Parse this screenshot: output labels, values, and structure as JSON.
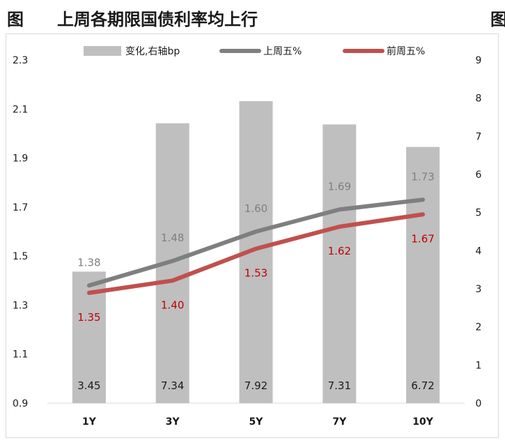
{
  "title": {
    "label": "图",
    "text": "上周各期限国债利率均上行",
    "cut_label": "图"
  },
  "colors": {
    "bar": "#bfbfbf",
    "line_prev": "#7f7f7f",
    "line_curr": "#c0504d",
    "label_prev": "#7f7f7f",
    "label_curr": "#c00000",
    "label_bar": "#1a1a1a",
    "axis_text": "#1a1a1a"
  },
  "chart_data": {
    "type": "bar",
    "categories": [
      "1Y",
      "3Y",
      "5Y",
      "7Y",
      "10Y"
    ],
    "series": [
      {
        "name": "变化,右轴bp",
        "kind": "bar",
        "axis": "right",
        "values": [
          3.45,
          7.34,
          7.92,
          7.31,
          6.72
        ],
        "labels": [
          "3.45",
          "7.34",
          "7.92",
          "7.31",
          "6.72"
        ]
      },
      {
        "name": "上周五%",
        "kind": "line",
        "axis": "left",
        "values": [
          1.38,
          1.48,
          1.6,
          1.69,
          1.73
        ],
        "labels": [
          "1.38",
          "1.48",
          "1.60",
          "1.69",
          "1.73"
        ]
      },
      {
        "name": "前周五%",
        "kind": "line",
        "axis": "left",
        "values": [
          1.35,
          1.4,
          1.53,
          1.62,
          1.67
        ],
        "labels": [
          "1.35",
          "1.40",
          "1.53",
          "1.62",
          "1.67"
        ]
      }
    ],
    "y_left": {
      "min": 0.9,
      "max": 2.3,
      "ticks": [
        "0.9",
        "1.1",
        "1.3",
        "1.5",
        "1.7",
        "1.9",
        "2.1",
        "2.3"
      ]
    },
    "y_right": {
      "min": 0,
      "max": 9,
      "ticks": [
        "0",
        "1",
        "2",
        "3",
        "4",
        "5",
        "6",
        "7",
        "8",
        "9"
      ]
    },
    "legend": {
      "position": "top"
    },
    "grid": false
  }
}
